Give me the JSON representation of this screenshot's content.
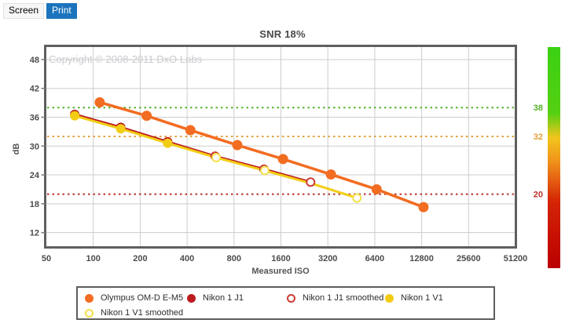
{
  "tabs": [
    {
      "label": "Screen",
      "active": false
    },
    {
      "label": "Print",
      "active": true
    }
  ],
  "chart_data": {
    "type": "line",
    "title": "SNR 18%",
    "xlabel": "Measured ISO",
    "ylabel": "dB",
    "copyright": "Copyright © 2008-2011 DxO Labs",
    "x_scale": "log2",
    "xlim": [
      50,
      51200
    ],
    "ylim": [
      9.0,
      50.6
    ],
    "x_ticks": [
      50,
      100,
      200,
      400,
      800,
      1600,
      3200,
      6400,
      12800,
      25600,
      51200
    ],
    "y_ticks": [
      48,
      42,
      36,
      30,
      24,
      18,
      12
    ],
    "grid": true,
    "legend_position": "bottom",
    "thresholds": [
      {
        "value": 38,
        "label": "38",
        "color": "#55b32a"
      },
      {
        "value": 32,
        "label": "32",
        "color": "#e2a23a"
      },
      {
        "value": 20,
        "label": "20",
        "color": "#b8322c"
      }
    ],
    "series": [
      {
        "name": "Olympus OM-D E-M5",
        "color": "#f26c21",
        "marker": "filled",
        "points": [
          [
            110,
            39.1
          ],
          [
            220,
            36.3
          ],
          [
            420,
            33.3
          ],
          [
            840,
            30.2
          ],
          [
            1650,
            27.3
          ],
          [
            3350,
            24.1
          ],
          [
            6580,
            21.0
          ],
          [
            13150,
            17.3
          ]
        ]
      },
      {
        "name": "Nikon 1 J1",
        "color": "#bb1a1f",
        "marker": "filled",
        "marker_indices": [
          0,
          1,
          2
        ],
        "points": [
          [
            76,
            36.6
          ],
          [
            150,
            33.9
          ],
          [
            300,
            30.9
          ],
          [
            605,
            27.9
          ],
          [
            1245,
            25.2
          ],
          [
            2480,
            22.5
          ]
        ]
      },
      {
        "name": "Nikon 1 J1 smoothed",
        "color": "#cd3b31",
        "marker": "open",
        "line": false,
        "points": [
          [
            605,
            27.9
          ],
          [
            1245,
            25.2
          ],
          [
            2480,
            22.5
          ]
        ]
      },
      {
        "name": "Nikon 1 V1",
        "color": "#f3cd15",
        "marker": "filled",
        "marker_indices": [
          0,
          1,
          2
        ],
        "points": [
          [
            76,
            36.3
          ],
          [
            150,
            33.6
          ],
          [
            300,
            30.6
          ],
          [
            615,
            27.6
          ],
          [
            1260,
            24.9
          ],
          [
            2520,
            22.2
          ],
          [
            4920,
            19.2
          ]
        ]
      },
      {
        "name": "Nikon 1 V1 smoothed",
        "color": "#f3e04a",
        "marker": "open",
        "line": false,
        "points": [
          [
            615,
            27.6
          ],
          [
            1260,
            24.9
          ],
          [
            4920,
            19.2
          ]
        ]
      }
    ],
    "colorbar": {
      "stops": [
        [
          0,
          "#3bd113"
        ],
        [
          0.3,
          "#55d013"
        ],
        [
          0.41,
          "#f2c51d"
        ],
        [
          0.52,
          "#f0911c"
        ],
        [
          0.63,
          "#e04d0e"
        ],
        [
          0.7,
          "#d42405"
        ],
        [
          1,
          "#ba0000"
        ]
      ],
      "labels": [
        "38",
        "32",
        "20"
      ]
    }
  }
}
